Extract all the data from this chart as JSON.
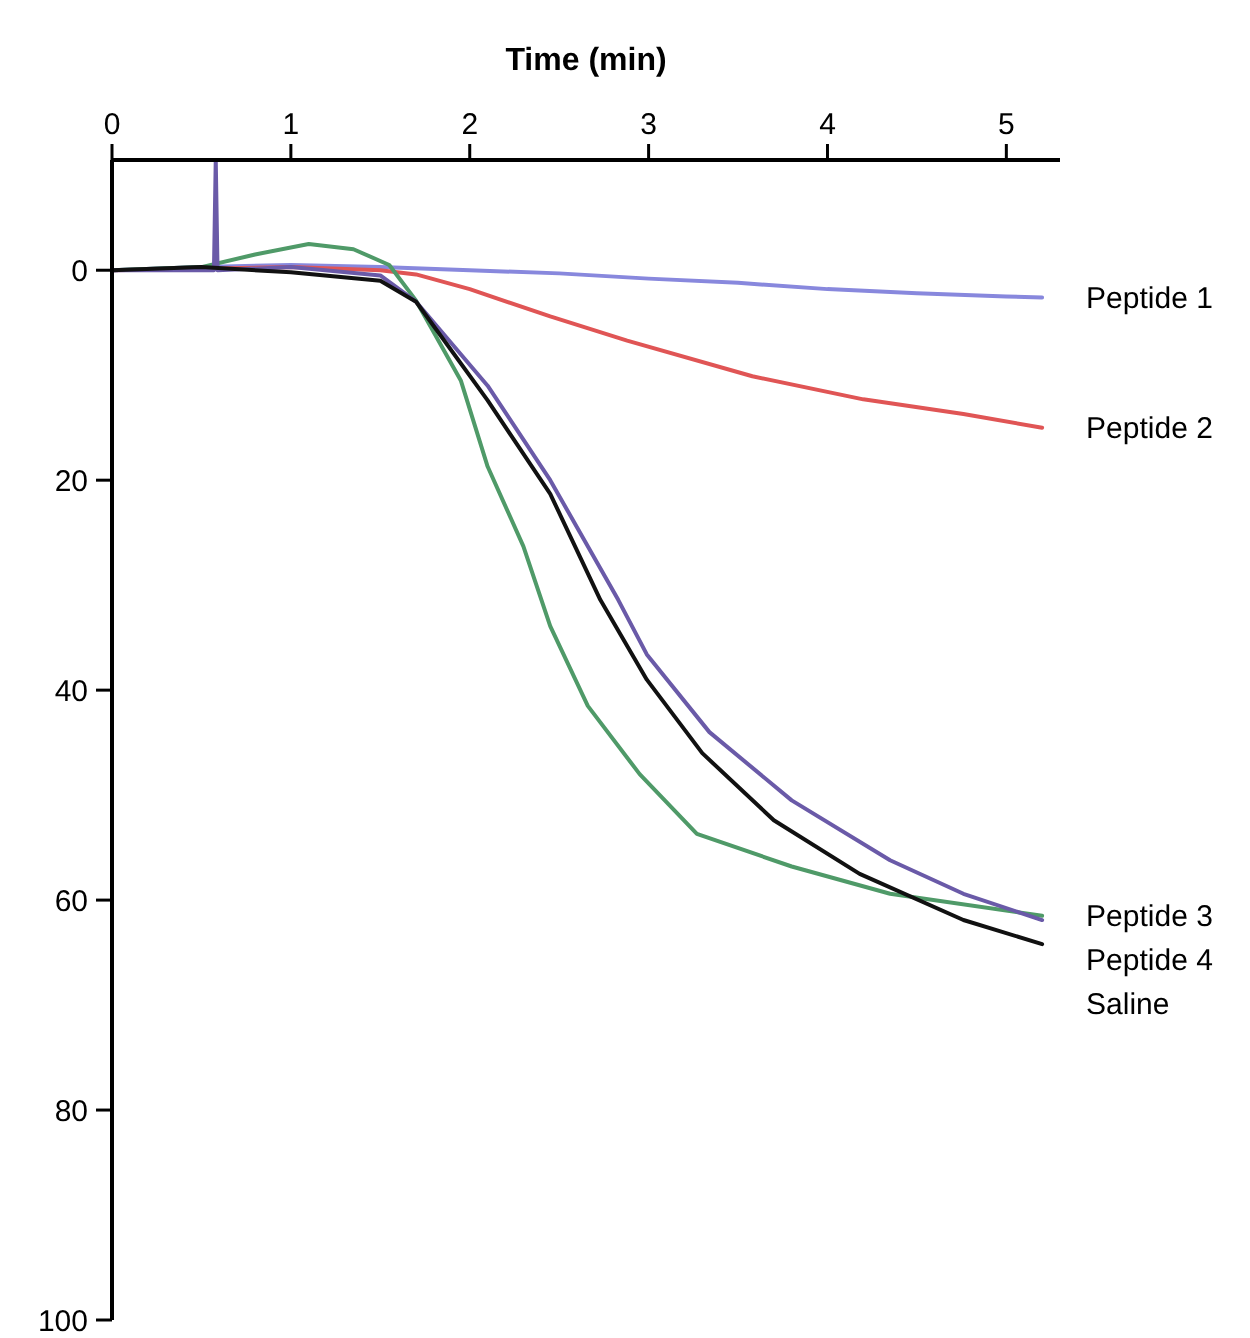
{
  "chart_data": {
    "type": "line",
    "xlabel": "Time (min)",
    "xlim": [
      0,
      5.3
    ],
    "xticks": [
      0,
      1,
      2,
      3,
      4,
      5
    ],
    "ylim": [
      100,
      -10.5
    ],
    "yticks": [
      0,
      20,
      40,
      60,
      80,
      100
    ],
    "grid": false,
    "legend": false,
    "marker": "none",
    "line_style": "solid",
    "series": [
      {
        "name": "Peptide 1",
        "color": "#8888dd",
        "x": [
          0,
          0.5,
          1,
          1.5,
          2,
          2.5,
          3,
          3.5,
          4,
          4.5,
          5,
          5.2
        ],
        "values": [
          0,
          -0.3,
          -0.5,
          -0.3,
          0,
          0.3,
          0.8,
          1.2,
          1.8,
          2.2,
          2.5,
          2.6
        ]
      },
      {
        "name": "Peptide 2",
        "color": "#e05555",
        "x": [
          0,
          1,
          1.5,
          1.7,
          2,
          2.45,
          2.88,
          3.58,
          4.2,
          4.76,
          5.2
        ],
        "values": [
          0,
          -0.3,
          0,
          0.4,
          1.8,
          4.4,
          6.7,
          10.1,
          12.3,
          13.7,
          15
        ]
      },
      {
        "name": "Peptide 3",
        "color": "#4f9a68",
        "x": [
          0,
          0.5,
          0.8,
          1.1,
          1.35,
          1.55,
          1.7,
          1.95,
          2.1,
          2.3,
          2.45,
          2.66,
          2.95,
          3.27,
          3.8,
          4.35,
          5.2
        ],
        "values": [
          0,
          -0.3,
          -1.5,
          -2.5,
          -2,
          -0.5,
          2.9,
          10.5,
          18.7,
          26.3,
          33.9,
          41.5,
          48,
          53.7,
          56.8,
          59.4,
          61.5
        ]
      },
      {
        "name": "Peptide 4",
        "color": "#6a5aa8",
        "x": [
          0,
          0.57,
          0.58,
          0.59,
          1,
          1.5,
          1.7,
          2.1,
          2.45,
          2.83,
          2.99,
          3.34,
          3.8,
          4.35,
          4.76,
          5.2
        ],
        "values": [
          0,
          0,
          -10.5,
          0,
          -0.3,
          0.5,
          3,
          11,
          20,
          31.4,
          36.6,
          44,
          50.5,
          56.2,
          59.4,
          61.9
        ]
      },
      {
        "name": "Saline",
        "color": "#111111",
        "x": [
          0,
          0.5,
          1,
          1.5,
          1.7,
          2.1,
          2.45,
          2.73,
          2.99,
          3.3,
          3.7,
          4.18,
          4.76,
          5.2
        ],
        "values": [
          0,
          -0.3,
          0.2,
          1,
          3,
          12.4,
          21.3,
          31.4,
          39,
          46,
          52.4,
          57.5,
          61.9,
          64.2
        ]
      }
    ]
  }
}
